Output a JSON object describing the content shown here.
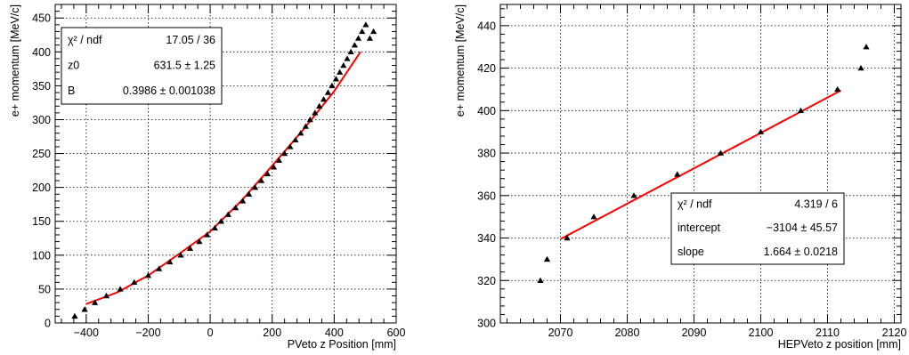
{
  "chart_data": [
    {
      "type": "scatter",
      "xlabel": "PVeto z Position [mm]",
      "ylabel": "e+ momentum [MeV/c]",
      "xlim": [
        -500,
        600
      ],
      "ylim": [
        0,
        470
      ],
      "xticks": [
        -400,
        -200,
        0,
        200,
        400,
        600
      ],
      "yticks": [
        0,
        50,
        100,
        150,
        200,
        250,
        300,
        350,
        400,
        450
      ],
      "x_tick_labels": [
        "−400",
        "−200",
        "0",
        "200",
        "400",
        "600"
      ],
      "y_tick_labels": [
        "0",
        "50",
        "100",
        "150",
        "200",
        "250",
        "300",
        "350",
        "400",
        "450"
      ],
      "grid": true,
      "marker": "triangle",
      "points": {
        "x": [
          -437,
          -405,
          -372,
          -335,
          -290,
          -245,
          -200,
          -165,
          -130,
          -95,
          -65,
          -35,
          -10,
          15,
          35,
          58,
          82,
          105,
          125,
          145,
          165,
          185,
          205,
          222,
          240,
          258,
          275,
          292,
          308,
          322,
          338,
          352,
          366,
          380,
          393,
          406,
          418,
          430,
          442,
          454,
          466,
          478,
          490,
          502,
          515,
          527
        ],
        "y": [
          10,
          20,
          30,
          40,
          50,
          60,
          70,
          80,
          90,
          100,
          110,
          120,
          130,
          140,
          150,
          160,
          170,
          180,
          190,
          200,
          210,
          220,
          230,
          240,
          250,
          260,
          270,
          280,
          290,
          300,
          310,
          320,
          330,
          340,
          350,
          360,
          370,
          380,
          390,
          400,
          410,
          420,
          430,
          440,
          420,
          430
        ]
      },
      "fit": {
        "function": "quadratic",
        "x_range": [
          -400,
          485
        ],
        "curve_x": [
          -400,
          -300,
          -200,
          -100,
          0,
          100,
          200,
          300,
          400,
          485
        ],
        "curve_y": [
          28,
          45,
          70,
          102,
          135,
          180,
          232,
          285,
          342,
          400
        ]
      },
      "stats": {
        "position": "top-left",
        "rows": [
          {
            "label": "χ² / ndf",
            "value": "17.05 / 36"
          },
          {
            "label": "z0",
            "value": "631.5 ±  1.25"
          },
          {
            "label": "B",
            "value": "0.3986 ± 0.001038"
          }
        ]
      }
    },
    {
      "type": "scatter",
      "xlabel": "HEPVeto z position [mm]",
      "ylabel": "e+ momentum [MeV/c]",
      "xlim": [
        2061,
        2121
      ],
      "ylim": [
        300,
        450
      ],
      "xticks": [
        2070,
        2080,
        2090,
        2100,
        2110,
        2120
      ],
      "yticks": [
        300,
        320,
        340,
        360,
        380,
        400,
        420,
        440
      ],
      "x_tick_labels": [
        "2070",
        "2080",
        "2090",
        "2100",
        "2110",
        "2120"
      ],
      "y_tick_labels": [
        "300",
        "320",
        "340",
        "360",
        "380",
        "400",
        "420",
        "440"
      ],
      "grid": true,
      "marker": "triangle",
      "points": {
        "x": [
          2067,
          2068,
          2071,
          2075,
          2081,
          2087.5,
          2094,
          2100,
          2106,
          2111.5,
          2115,
          2115.8
        ],
        "y": [
          320,
          330,
          340,
          350,
          360,
          370,
          380,
          390,
          400,
          410,
          420,
          430
        ]
      },
      "fit": {
        "function": "linear",
        "x_range": [
          2070,
          2112
        ],
        "curve_x": [
          2070,
          2112
        ],
        "curve_y": [
          339.5,
          409.5
        ]
      },
      "stats": {
        "position": "bottom-right",
        "rows": [
          {
            "label": "χ² / ndf",
            "value": "4.319 / 6"
          },
          {
            "label": "intercept",
            "value": "−3104 ± 45.57"
          },
          {
            "label": "slope",
            "value": "1.664 ± 0.0218"
          }
        ]
      }
    }
  ]
}
